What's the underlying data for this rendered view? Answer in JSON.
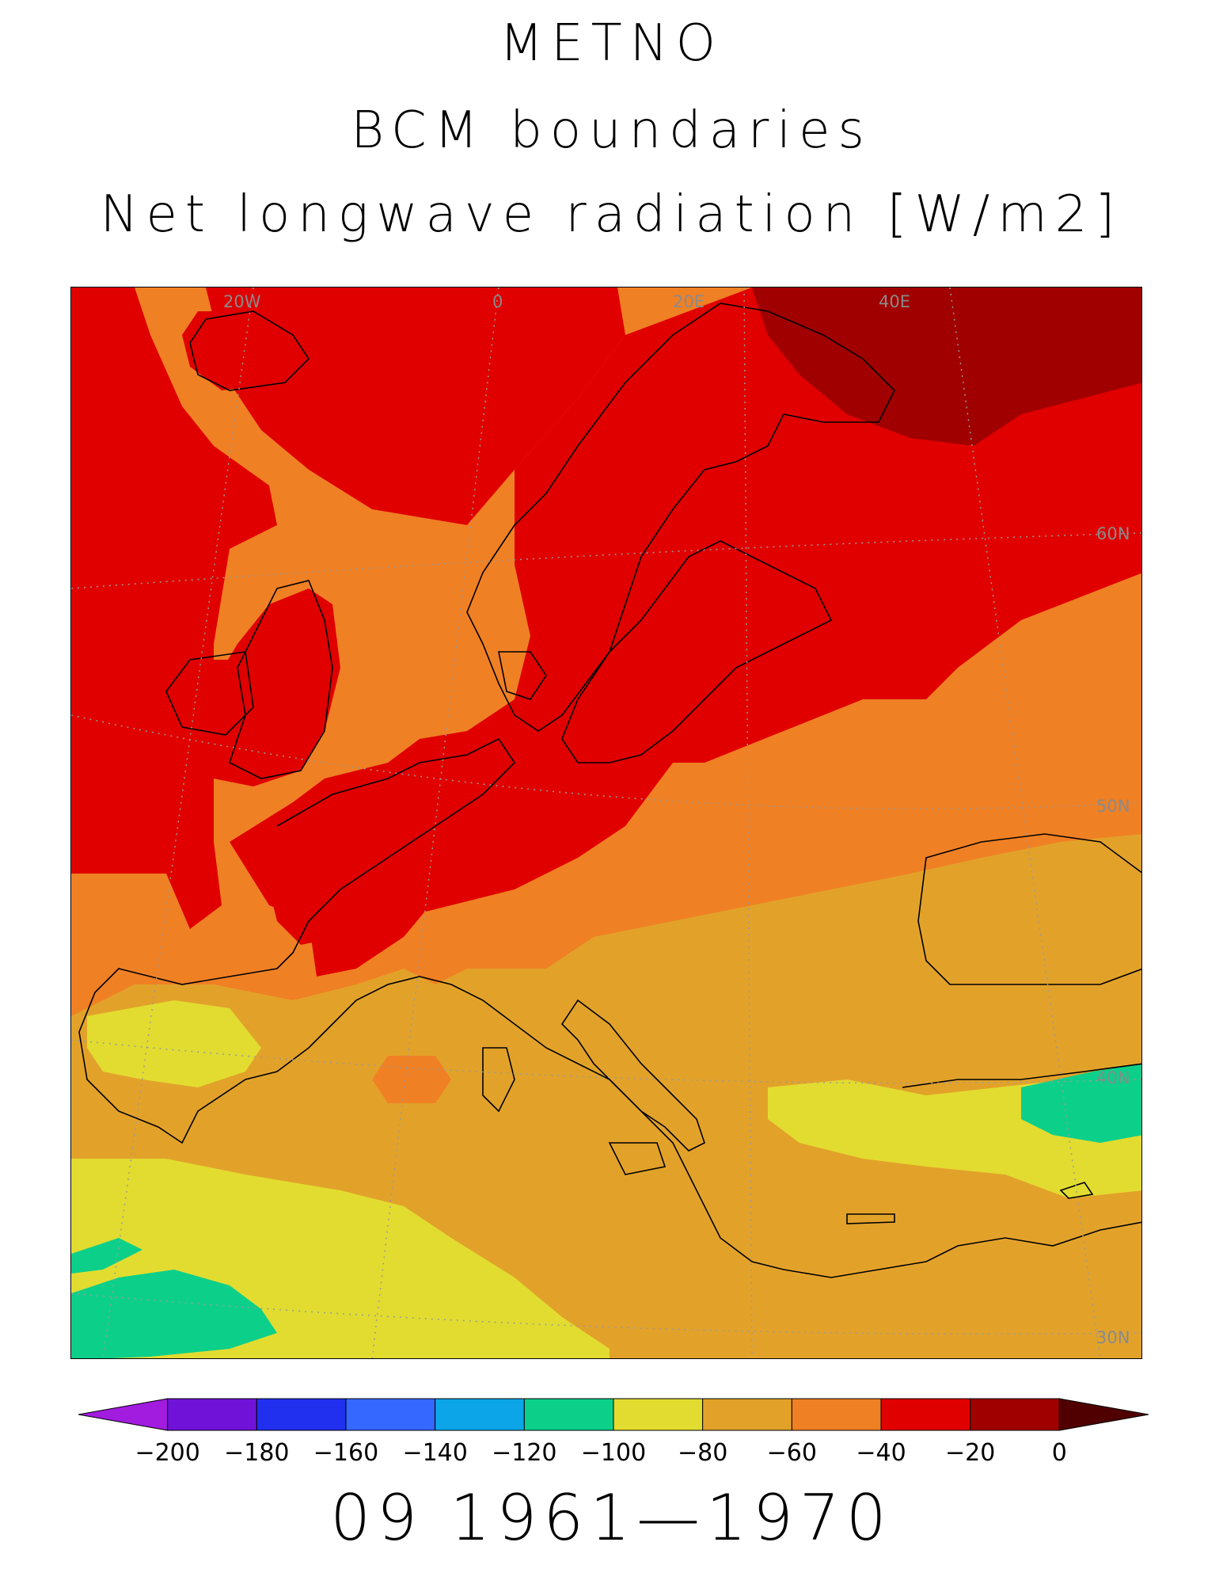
{
  "title": {
    "line1": "METNO",
    "line2": "BCM boundaries",
    "line3": "Net longwave radiation [W/m2]"
  },
  "map": {
    "gridline_labels": [
      "20W",
      "0",
      "20E",
      "40E",
      "60N",
      "50N",
      "40N",
      "30N"
    ],
    "colors": {
      "sea_atlantic_north": "#e00000",
      "band_orange": "#f08024",
      "band_amber": "#e2a22a",
      "band_yellow": "#e2dc30",
      "band_green": "#0ccf8a",
      "band_darkred": "#a00000",
      "coast": "#000000",
      "grid": "#9a9a9a"
    }
  },
  "colorbar": {
    "labels": [
      "-200",
      "-180",
      "-160",
      "-140",
      "-120",
      "-100",
      "-80",
      "-60",
      "-40",
      "-20",
      "0"
    ],
    "colors": [
      "#a21ce0",
      "#7012d8",
      "#2030ee",
      "#3468ff",
      "#0ca6e8",
      "#0ccf8a",
      "#e2dc30",
      "#e2a22a",
      "#f08024",
      "#e00000",
      "#a00000",
      "#500000"
    ]
  },
  "period": "09 1961—1970"
}
